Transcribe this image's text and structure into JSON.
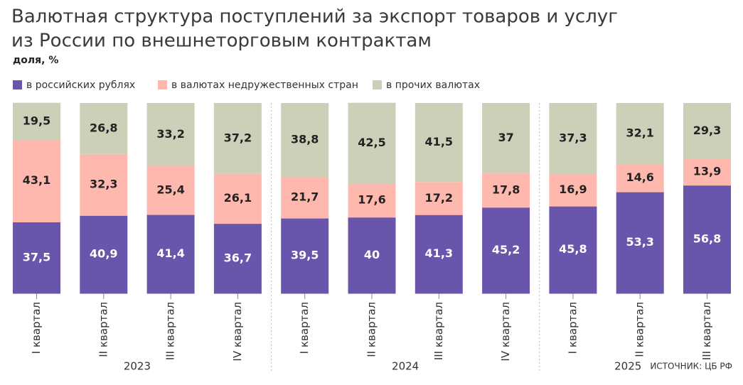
{
  "chart_data": {
    "type": "stacked-bar",
    "title": [
      "Валютная структура поступлений за экспорт товаров и услуг",
      "из России по внешнеторговым контрактам"
    ],
    "subtitle": "доля, %",
    "source": "ИСТОЧНИК: ЦБ РФ",
    "ylim": [
      0,
      100
    ],
    "groups": [
      {
        "label": "2023",
        "categories": [
          "I квартал",
          "II квартал",
          "III квартал",
          "IV квартал"
        ]
      },
      {
        "label": "2024",
        "categories": [
          "I квартал",
          "II квартал",
          "III квартал",
          "IV квартал"
        ]
      },
      {
        "label": "2025",
        "categories": [
          "I квартал",
          "II квартал",
          "III квартал"
        ]
      }
    ],
    "series": [
      {
        "name": "в российских рублях",
        "color": "#6a55ad",
        "label_color": "#ffffff",
        "values": [
          37.5,
          40.9,
          41.4,
          36.7,
          39.5,
          40,
          41.3,
          45.2,
          45.8,
          53.3,
          56.8
        ],
        "value_labels": [
          "37,5",
          "40,9",
          "41,4",
          "36,7",
          "39,5",
          "40",
          "41,3",
          "45,2",
          "45,8",
          "53,3",
          "56,8"
        ]
      },
      {
        "name": "в валютах недружественных стран",
        "color": "#ffb8ad",
        "label_color": "#222222",
        "values": [
          43.1,
          32.3,
          25.4,
          26.1,
          21.7,
          17.6,
          17.2,
          17.8,
          16.9,
          14.6,
          13.9
        ],
        "value_labels": [
          "43,1",
          "32,3",
          "25,4",
          "26,1",
          "21,7",
          "17,6",
          "17,2",
          "17,8",
          "16,9",
          "14,6",
          "13,9"
        ]
      },
      {
        "name": "в прочих валютах",
        "color": "#cdcfb9",
        "label_color": "#222222",
        "values": [
          19.5,
          26.8,
          33.2,
          37.2,
          38.8,
          42.5,
          41.5,
          37,
          37.3,
          32.1,
          29.3
        ],
        "value_labels": [
          "19,5",
          "26,8",
          "33,2",
          "37,2",
          "38,8",
          "42,5",
          "41,5",
          "37",
          "37,3",
          "32,1",
          "29,3"
        ]
      }
    ]
  }
}
